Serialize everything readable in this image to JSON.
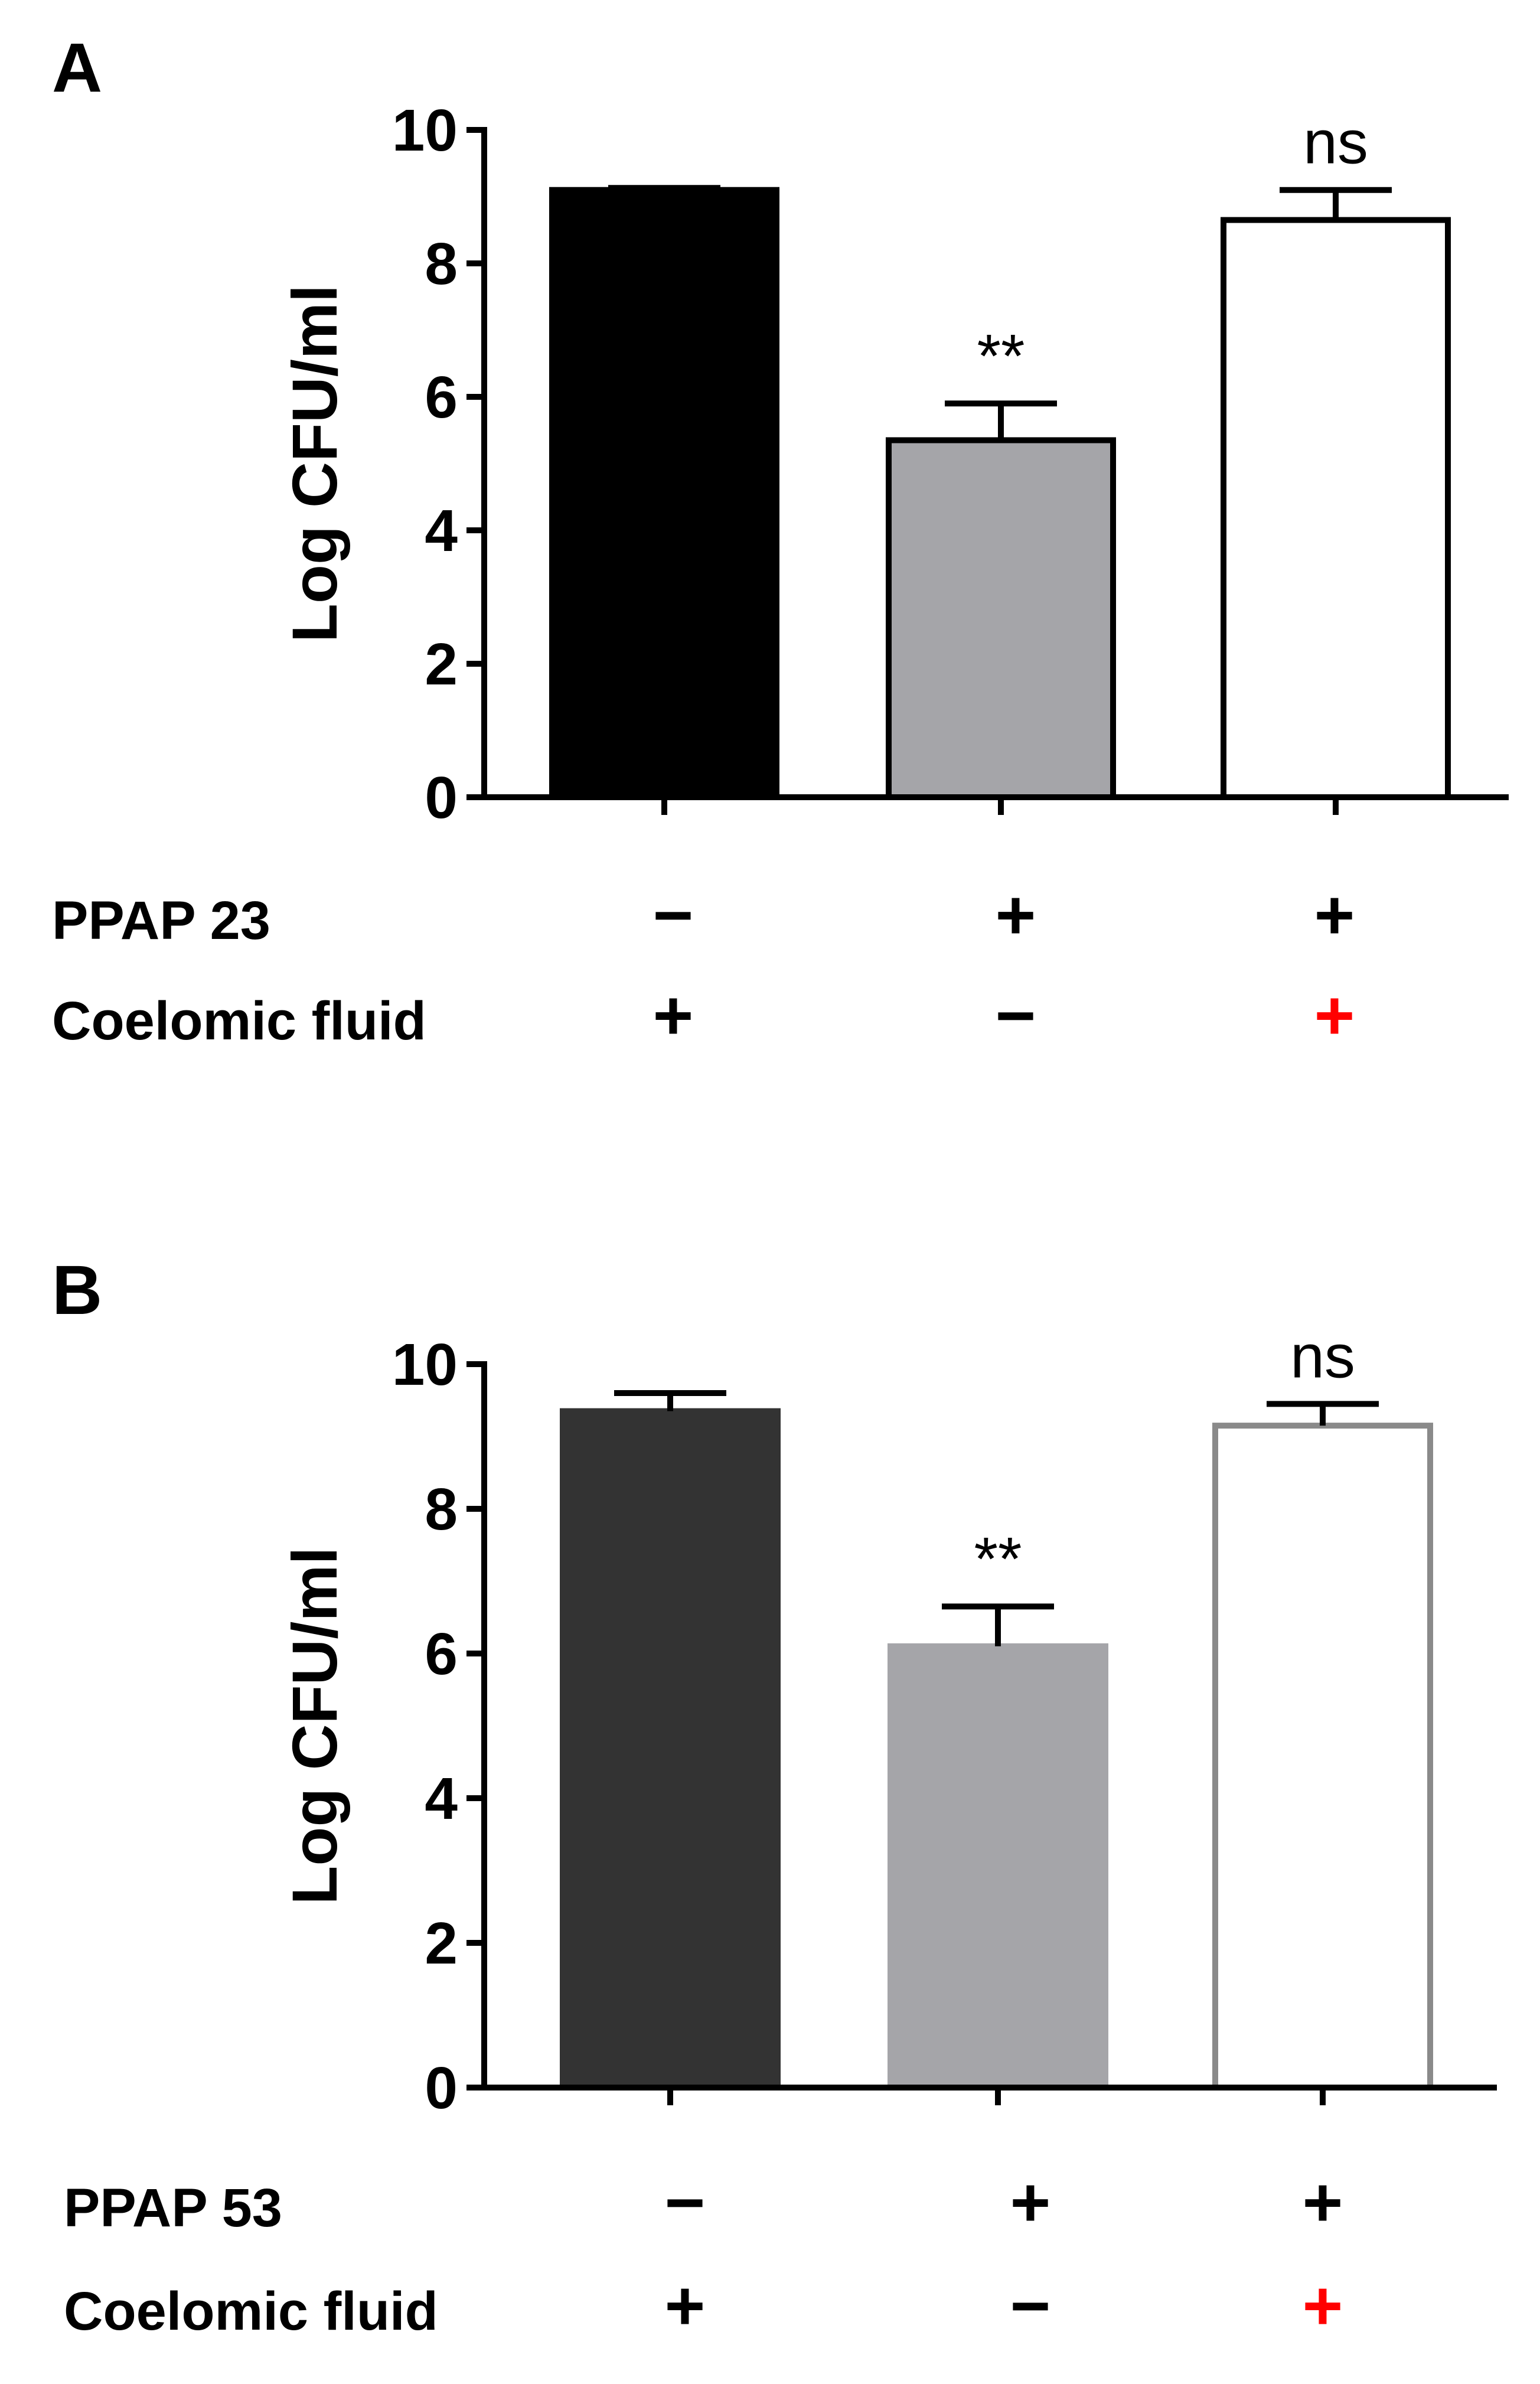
{
  "chart_data": [
    {
      "type": "bar",
      "panel": "A",
      "categories": [
        "",
        "",
        ""
      ],
      "values": [
        9.1,
        5.35,
        8.65
      ],
      "errors": [
        0.03,
        0.55,
        0.45
      ],
      "annotations": [
        "",
        "**",
        "ns"
      ],
      "bar_fill": [
        "#000000",
        "#a5a5a9",
        "#ffffff"
      ],
      "bar_stroke": [
        "#000000",
        "#000000",
        "#000000"
      ],
      "error_color": [
        "#000000",
        "#000000",
        "#000000"
      ],
      "ylabel": "Log CFU/ml",
      "ylim": [
        0,
        10
      ],
      "yticks": [
        "0",
        "2",
        "4",
        "6",
        "8",
        "10"
      ],
      "grid": false,
      "conditions": [
        {
          "label": "PPAP  23",
          "signs": [
            "−",
            "+",
            "+"
          ],
          "sign_colors": [
            "#000000",
            "#000000",
            "#000000"
          ]
        },
        {
          "label": "Coelomic fluid",
          "signs": [
            "+",
            "−",
            "+"
          ],
          "sign_colors": [
            "#000000",
            "#000000",
            "#ff0000"
          ]
        }
      ]
    },
    {
      "type": "bar",
      "panel": "B",
      "categories": [
        "",
        "",
        ""
      ],
      "values": [
        9.35,
        6.1,
        9.15
      ],
      "errors": [
        0.25,
        0.55,
        0.3
      ],
      "annotations": [
        "",
        "**",
        "ns"
      ],
      "bar_fill": [
        "#333333",
        "#a5a5a9",
        "#ffffff"
      ],
      "bar_stroke": [
        "#333333",
        "#a5a5a9",
        "#8a8a8a"
      ],
      "error_color": [
        "#000000",
        "#000000",
        "#000000"
      ],
      "ylabel": "Log CFU/ml",
      "ylim": [
        0,
        10
      ],
      "yticks": [
        "0",
        "2",
        "4",
        "6",
        "8",
        "10"
      ],
      "grid": false,
      "conditions": [
        {
          "label": "PPAP  53",
          "signs": [
            "−",
            "+",
            "+"
          ],
          "sign_colors": [
            "#000000",
            "#000000",
            "#000000"
          ]
        },
        {
          "label": "Coelomic fluid",
          "signs": [
            "+",
            "−",
            "+"
          ],
          "sign_colors": [
            "#000000",
            "#000000",
            "#ff0000"
          ]
        }
      ]
    }
  ]
}
